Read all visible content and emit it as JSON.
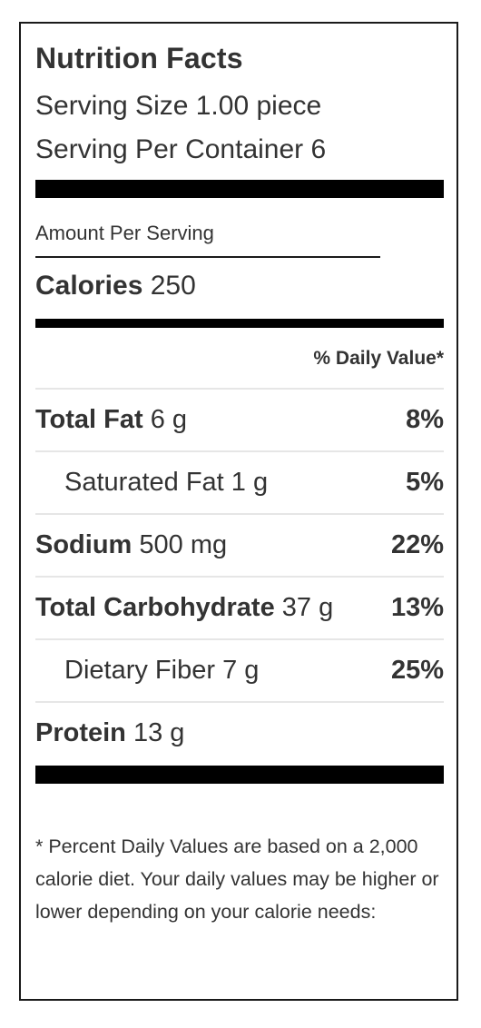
{
  "label": {
    "title": "Nutrition Facts",
    "serving_size": "Serving Size 1.00 piece",
    "serving_per_container": "Serving Per Container 6",
    "amount_per_serving": "Amount Per Serving",
    "calories_label": "Calories",
    "calories_value": "250",
    "daily_value_header": "% Daily Value*",
    "nutrients": [
      {
        "name": "Total Fat",
        "amount": "6 g",
        "percent": "8%"
      },
      {
        "name": "Saturated Fat",
        "amount": "1 g",
        "percent": "5%"
      },
      {
        "name": "Sodium",
        "amount": "500 mg",
        "percent": "22%"
      },
      {
        "name": "Total Carbohydrate",
        "amount": "37 g",
        "percent": "13%"
      },
      {
        "name": "Dietary Fiber",
        "amount": "7 g",
        "percent": "25%"
      },
      {
        "name": "Protein",
        "amount": "13 g",
        "percent": ""
      }
    ],
    "footnote": "* Percent Daily Values are based on a 2,000 calorie diet. Your daily values may be higher or lower depending on your calorie needs:"
  }
}
